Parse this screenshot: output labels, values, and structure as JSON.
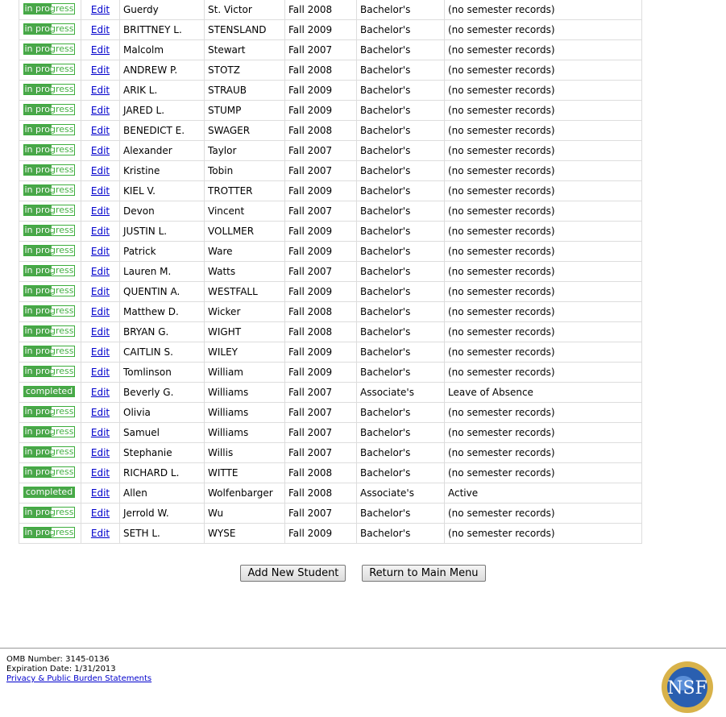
{
  "students": [
    [
      "in progress",
      "Guerdy",
      "St. Victor",
      "Fall 2008",
      "Bachelor's",
      "(no semester records)"
    ],
    [
      "in progress",
      "BRITTNEY L.",
      "STENSLAND",
      "Fall 2009",
      "Bachelor's",
      "(no semester records)"
    ],
    [
      "in progress",
      "Malcolm",
      "Stewart",
      "Fall 2007",
      "Bachelor's",
      "(no semester records)"
    ],
    [
      "in progress",
      "ANDREW P.",
      "STOTZ",
      "Fall 2008",
      "Bachelor's",
      "(no semester records)"
    ],
    [
      "in progress",
      "ARIK L.",
      "STRAUB",
      "Fall 2009",
      "Bachelor's",
      "(no semester records)"
    ],
    [
      "in progress",
      "JARED L.",
      "STUMP",
      "Fall 2009",
      "Bachelor's",
      "(no semester records)"
    ],
    [
      "in progress",
      "BENEDICT E.",
      "SWAGER",
      "Fall 2008",
      "Bachelor's",
      "(no semester records)"
    ],
    [
      "in progress",
      "Alexander",
      "Taylor",
      "Fall 2007",
      "Bachelor's",
      "(no semester records)"
    ],
    [
      "in progress",
      "Kristine",
      "Tobin",
      "Fall 2007",
      "Bachelor's",
      "(no semester records)"
    ],
    [
      "in progress",
      "KIEL V.",
      "TROTTER",
      "Fall 2009",
      "Bachelor's",
      "(no semester records)"
    ],
    [
      "in progress",
      "Devon",
      "Vincent",
      "Fall 2007",
      "Bachelor's",
      "(no semester records)"
    ],
    [
      "in progress",
      "JUSTIN L.",
      "VOLLMER",
      "Fall 2009",
      "Bachelor's",
      "(no semester records)"
    ],
    [
      "in progress",
      "Patrick",
      "Ware",
      "Fall 2009",
      "Bachelor's",
      "(no semester records)"
    ],
    [
      "in progress",
      "Lauren M.",
      "Watts",
      "Fall 2007",
      "Bachelor's",
      "(no semester records)"
    ],
    [
      "in progress",
      "QUENTIN A.",
      "WESTFALL",
      "Fall 2009",
      "Bachelor's",
      "(no semester records)"
    ],
    [
      "in progress",
      "Matthew D.",
      "Wicker",
      "Fall 2008",
      "Bachelor's",
      "(no semester records)"
    ],
    [
      "in progress",
      "BRYAN G.",
      "WIGHT",
      "Fall 2008",
      "Bachelor's",
      "(no semester records)"
    ],
    [
      "in progress",
      "CAITLIN S.",
      "WILEY",
      "Fall 2009",
      "Bachelor's",
      "(no semester records)"
    ],
    [
      "in progress",
      "Tomlinson",
      "William",
      "Fall 2009",
      "Bachelor's",
      "(no semester records)"
    ],
    [
      "completed",
      "Beverly G.",
      "Williams",
      "Fall 2007",
      "Associate's",
      "Leave of Absence"
    ],
    [
      "in progress",
      "Olivia",
      "Williams",
      "Fall 2007",
      "Bachelor's",
      "(no semester records)"
    ],
    [
      "in progress",
      "Samuel",
      "Williams",
      "Fall 2007",
      "Bachelor's",
      "(no semester records)"
    ],
    [
      "in progress",
      "Stephanie",
      "Willis",
      "Fall 2007",
      "Bachelor's",
      "(no semester records)"
    ],
    [
      "in progress",
      "RICHARD L.",
      "WITTE",
      "Fall 2008",
      "Bachelor's",
      "(no semester records)"
    ],
    [
      "completed",
      "Allen",
      "Wolfenbarger",
      "Fall 2008",
      "Associate's",
      "Active"
    ],
    [
      "in progress",
      "Jerrold W.",
      "Wu",
      "Fall 2007",
      "Bachelor's",
      "(no semester records)"
    ],
    [
      "in progress",
      "SETH L.",
      "WYSE",
      "Fall 2009",
      "Bachelor's",
      "(no semester records)"
    ]
  ],
  "edit_label": "Edit",
  "buttons": {
    "add": "Add New Student",
    "return": "Return to Main Menu"
  },
  "footer": {
    "omb": "OMB Number: 3145-0136",
    "expiration": "Expiration Date: 1/31/2013",
    "privacy": "Privacy & Public Burden Statements"
  },
  "logo": "NSF",
  "colors": {
    "badge_green": "#4aa64a",
    "link": "#0000cc"
  }
}
